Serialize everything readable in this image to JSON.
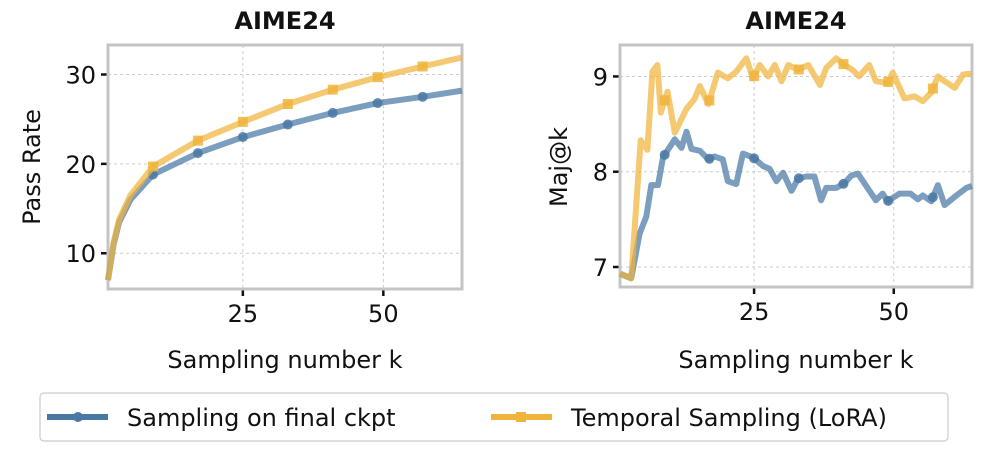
{
  "colors": {
    "blue": "#4a78a5",
    "orange": "#f0b43c"
  },
  "legend": {
    "placement": "bottom-center",
    "items": [
      {
        "label": "Sampling on final ckpt",
        "marker": "circle",
        "color": "#4a78a5"
      },
      {
        "label": "Temporal Sampling (LoRA)",
        "marker": "square",
        "color": "#f0b43c"
      }
    ]
  },
  "chart_data": [
    {
      "type": "line",
      "title": "AIME24",
      "xlabel": "Sampling number k",
      "ylabel": "Pass Rate",
      "xlim": [
        1,
        64
      ],
      "ylim": [
        6,
        33.3
      ],
      "xticks": [
        25,
        50
      ],
      "yticks": [
        10,
        20,
        30
      ],
      "grid": true,
      "marker_k": [
        9,
        17,
        25,
        33,
        41,
        49,
        57
      ],
      "series": [
        {
          "name": "Sampling on final ckpt",
          "x": [
            1,
            2,
            3,
            5,
            9,
            17,
            25,
            33,
            41,
            49,
            57,
            64
          ],
          "y": [
            7,
            11,
            13.5,
            16,
            18.8,
            21.2,
            23,
            24.4,
            25.7,
            26.8,
            27.5,
            28.2
          ]
        },
        {
          "name": "Temporal Sampling (LoRA)",
          "x": [
            1,
            2,
            3,
            5,
            9,
            17,
            25,
            33,
            41,
            49,
            57,
            64
          ],
          "y": [
            7,
            11.2,
            13.8,
            16.5,
            19.7,
            22.6,
            24.7,
            26.7,
            28.3,
            29.7,
            30.9,
            31.9
          ]
        }
      ]
    },
    {
      "type": "line",
      "title": "AIME24",
      "xlabel": "Sampling number k",
      "ylabel": "Maj@k",
      "xlim": [
        1,
        64
      ],
      "ylim": [
        6.79,
        9.33
      ],
      "xticks": [
        25,
        50
      ],
      "yticks": [
        7,
        8,
        9
      ],
      "grid": true,
      "marker_k": [
        9,
        17,
        25,
        33,
        41,
        49,
        57
      ],
      "series": [
        {
          "name": "Sampling on final ckpt",
          "x": [
            1,
            3,
            4.5,
            5.7,
            6.6,
            7.8,
            8.7,
            10.8,
            12,
            12.9,
            13.8,
            15.3,
            16.8,
            17.9,
            19.4,
            20.3,
            21.8,
            23,
            24.8,
            26.6,
            27.8,
            29,
            30.2,
            31.7,
            32.9,
            34.3,
            35.8,
            37,
            37.9,
            39.7,
            41.2,
            42.4,
            43.6,
            45.3,
            46.8,
            48,
            48.9,
            51,
            53,
            54.3,
            55.2,
            56.7,
            57.9,
            59.1,
            61.2,
            63,
            64
          ],
          "y": [
            6.93,
            6.88,
            7.35,
            7.53,
            7.86,
            7.86,
            8.15,
            8.34,
            8.25,
            8.42,
            8.24,
            8.22,
            8.13,
            8.16,
            8.13,
            7.9,
            7.87,
            8.19,
            8.15,
            8.06,
            8.03,
            7.9,
            7.99,
            7.8,
            7.93,
            7.95,
            7.95,
            7.7,
            7.83,
            7.83,
            7.88,
            7.96,
            7.98,
            7.83,
            7.7,
            7.77,
            7.69,
            7.77,
            7.77,
            7.71,
            7.75,
            7.69,
            7.86,
            7.65,
            7.75,
            7.83,
            7.85
          ]
        },
        {
          "name": "Temporal Sampling (LoRA)",
          "x": [
            1,
            3,
            4.7,
            5.9,
            6.8,
            7.7,
            8.3,
            9.5,
            10.8,
            12.9,
            14.3,
            15.3,
            16.8,
            18.5,
            20.3,
            21.8,
            23.6,
            24.8,
            26,
            27.5,
            28.7,
            29.9,
            31.1,
            32.9,
            34.7,
            36.8,
            37.9,
            39.7,
            41.2,
            42.6,
            43.8,
            45.6,
            46.8,
            48.9,
            49.8,
            51.9,
            53.7,
            55.2,
            56.7,
            57.9,
            59.1,
            60.9,
            62.4,
            64
          ],
          "y": [
            6.93,
            6.88,
            8.33,
            8.23,
            9.05,
            9.12,
            8.62,
            8.84,
            8.41,
            8.66,
            8.76,
            8.9,
            8.71,
            9.04,
            8.98,
            9.05,
            9.19,
            8.98,
            9.12,
            9,
            9.12,
            8.95,
            9.12,
            9.07,
            9.12,
            8.91,
            9.09,
            9.19,
            9.12,
            9.07,
            9,
            9.12,
            8.95,
            8.93,
            9.04,
            8.77,
            8.79,
            8.74,
            8.83,
            9,
            8.95,
            8.88,
            9.02,
            9.03
          ]
        }
      ]
    }
  ]
}
